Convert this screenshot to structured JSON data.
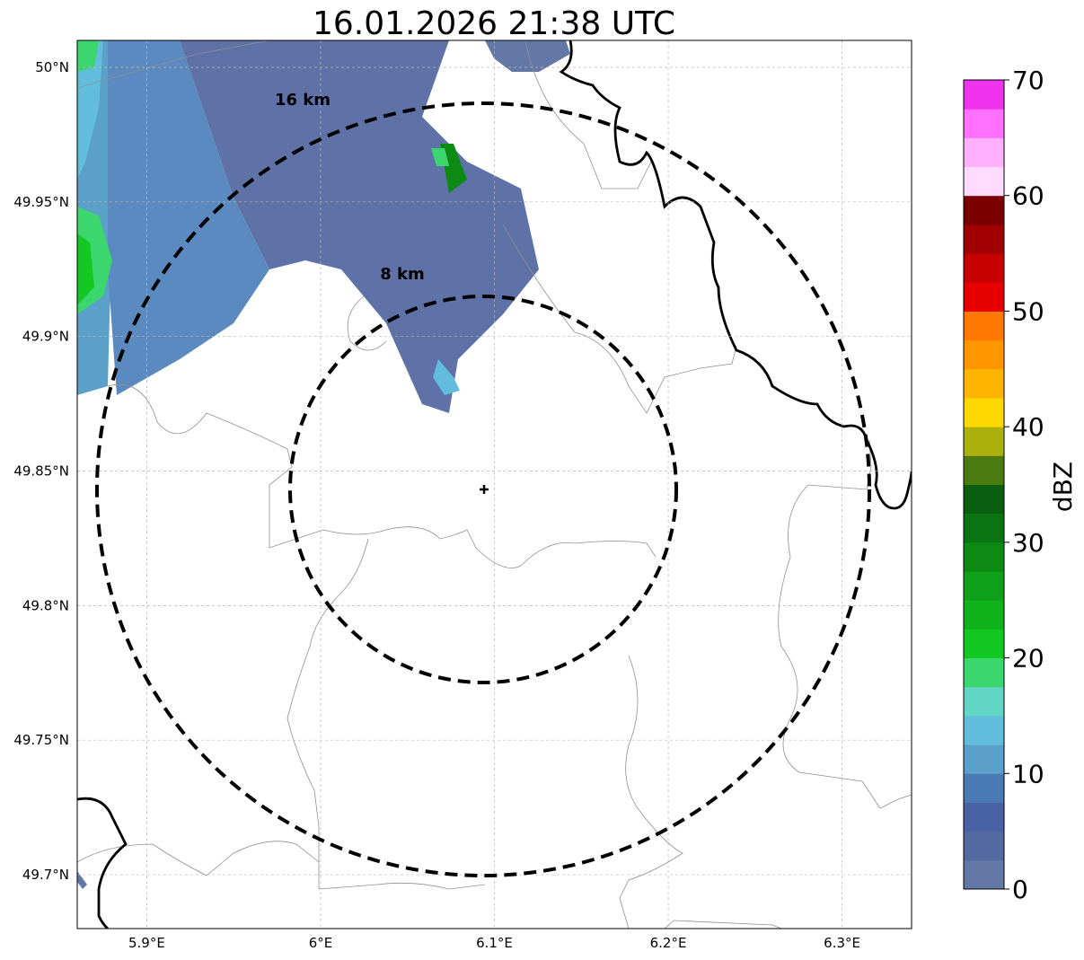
{
  "title": "16.01.2026 21:38 UTC",
  "axes": {
    "lon_ticks": [
      {
        "value": 5.9,
        "label": "5.9°E"
      },
      {
        "value": 6.0,
        "label": "6°E"
      },
      {
        "value": 6.1,
        "label": "6.1°E"
      },
      {
        "value": 6.2,
        "label": "6.2°E"
      },
      {
        "value": 6.3,
        "label": "6.3°E"
      }
    ],
    "lat_ticks": [
      {
        "value": 50.0,
        "label": "50°N"
      },
      {
        "value": 49.95,
        "label": "49.95°N"
      },
      {
        "value": 49.9,
        "label": "49.9°N"
      },
      {
        "value": 49.85,
        "label": "49.85°N"
      },
      {
        "value": 49.8,
        "label": "49.8°N"
      },
      {
        "value": 49.75,
        "label": "49.75°N"
      },
      {
        "value": 49.7,
        "label": "49.7°N"
      }
    ],
    "lon_range": [
      5.86,
      6.34
    ],
    "lat_range": [
      49.68,
      50.01
    ],
    "grid": true
  },
  "rings": [
    {
      "label": "8 km"
    },
    {
      "label": "16 km"
    }
  ],
  "radar_site": {
    "lon": 6.095,
    "lat": 49.843
  },
  "colorbar": {
    "label": "dBZ",
    "min": 0,
    "max": 70,
    "ticks": [
      "0",
      "10",
      "20",
      "30",
      "40",
      "50",
      "60",
      "70"
    ],
    "colors": [
      "#6478a8",
      "#566aa2",
      "#4862a4",
      "#4a7ab4",
      "#5aa0c8",
      "#62bcdc",
      "#62d6c6",
      "#3cd66e",
      "#14c824",
      "#10b41a",
      "#10a01a",
      "#0c8a14",
      "#0a7412",
      "#0a5e10",
      "#4a7a10",
      "#acb00c",
      "#ffd800",
      "#ffb400",
      "#ff9600",
      "#ff7800",
      "#e60000",
      "#c80000",
      "#a00000",
      "#7a0000",
      "#ffdcff",
      "#ffb0ff",
      "#ff70ff",
      "#ee32ee"
    ]
  }
}
